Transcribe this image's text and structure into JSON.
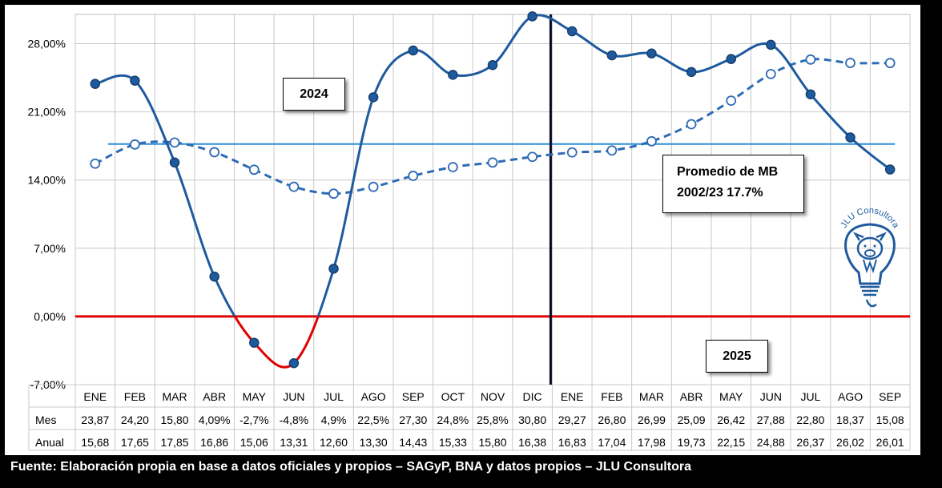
{
  "chart_data": {
    "type": "line",
    "categories": [
      "ENE",
      "FEB",
      "MAR",
      "ABR",
      "MAY",
      "JUN",
      "JUL",
      "AGO",
      "SEP",
      "OCT",
      "NOV",
      "DIC",
      "ENE",
      "FEB",
      "MAR",
      "ABR",
      "MAY",
      "JUN",
      "JUL",
      "AGO",
      "SEP"
    ],
    "series": [
      {
        "name": "Mes",
        "values": [
          23.87,
          24.2,
          15.8,
          4.09,
          -2.7,
          -4.8,
          4.9,
          22.5,
          27.3,
          24.8,
          25.8,
          30.8,
          29.27,
          26.8,
          26.99,
          25.09,
          26.42,
          27.88,
          22.8,
          18.37,
          15.08
        ],
        "style": "solid",
        "color": "#1e5a9e"
      },
      {
        "name": "Anual",
        "values": [
          15.68,
          17.65,
          17.85,
          16.86,
          15.06,
          13.31,
          12.6,
          13.3,
          14.43,
          15.33,
          15.8,
          16.38,
          16.83,
          17.04,
          17.98,
          19.73,
          22.15,
          24.88,
          26.37,
          26.02,
          26.01
        ],
        "style": "dashed",
        "color": "#2e6bb5"
      }
    ],
    "reference_lines": [
      {
        "value": 17.7,
        "color": "#2b8fd6"
      },
      {
        "value": 0,
        "color": "#e00000"
      }
    ],
    "negative_color": "#e00000",
    "divider_after_category_index": 11,
    "ylim": [
      -7,
      31
    ],
    "yticks": [
      -7,
      0,
      7,
      14,
      21,
      28
    ],
    "ytick_labels": [
      "-7,00%",
      "0,00%",
      "7,00%",
      "14,00%",
      "21,00%",
      "28,00%"
    ],
    "grid": true,
    "table": {
      "row_labels": [
        "Mes",
        "Anual"
      ],
      "rows": [
        [
          "23,87",
          "24,20",
          "15,80",
          "4,09%",
          "-2,7%",
          "-4,8%",
          "4,9%",
          "22,5%",
          "27,30",
          "24,8%",
          "25,8%",
          "30,80",
          "29,27",
          "26,80",
          "26,99",
          "25,09",
          "26,42",
          "27,88",
          "22,80",
          "18,37",
          "15,08"
        ],
        [
          "15,68",
          "17,65",
          "17,85",
          "16,86",
          "15,06",
          "13,31",
          "12,60",
          "13,30",
          "14,43",
          "15,33",
          "15,80",
          "16,38",
          "16,83",
          "17,04",
          "17,98",
          "19,73",
          "22,15",
          "24,88",
          "26,37",
          "26,02",
          "26,01"
        ]
      ]
    },
    "annotations": {
      "year_2024": "2024",
      "year_2025": "2025",
      "average_line1": "Promedio de MB",
      "average_line2": "2002/23 17.7%"
    }
  },
  "logo": {
    "text": "JLU Consultora",
    "icon": "pig-lightbulb-icon"
  },
  "source": "Fuente: Elaboración propia en base a datos oficiales y propios – SAGyP, BNA y datos propios – JLU Consultora"
}
